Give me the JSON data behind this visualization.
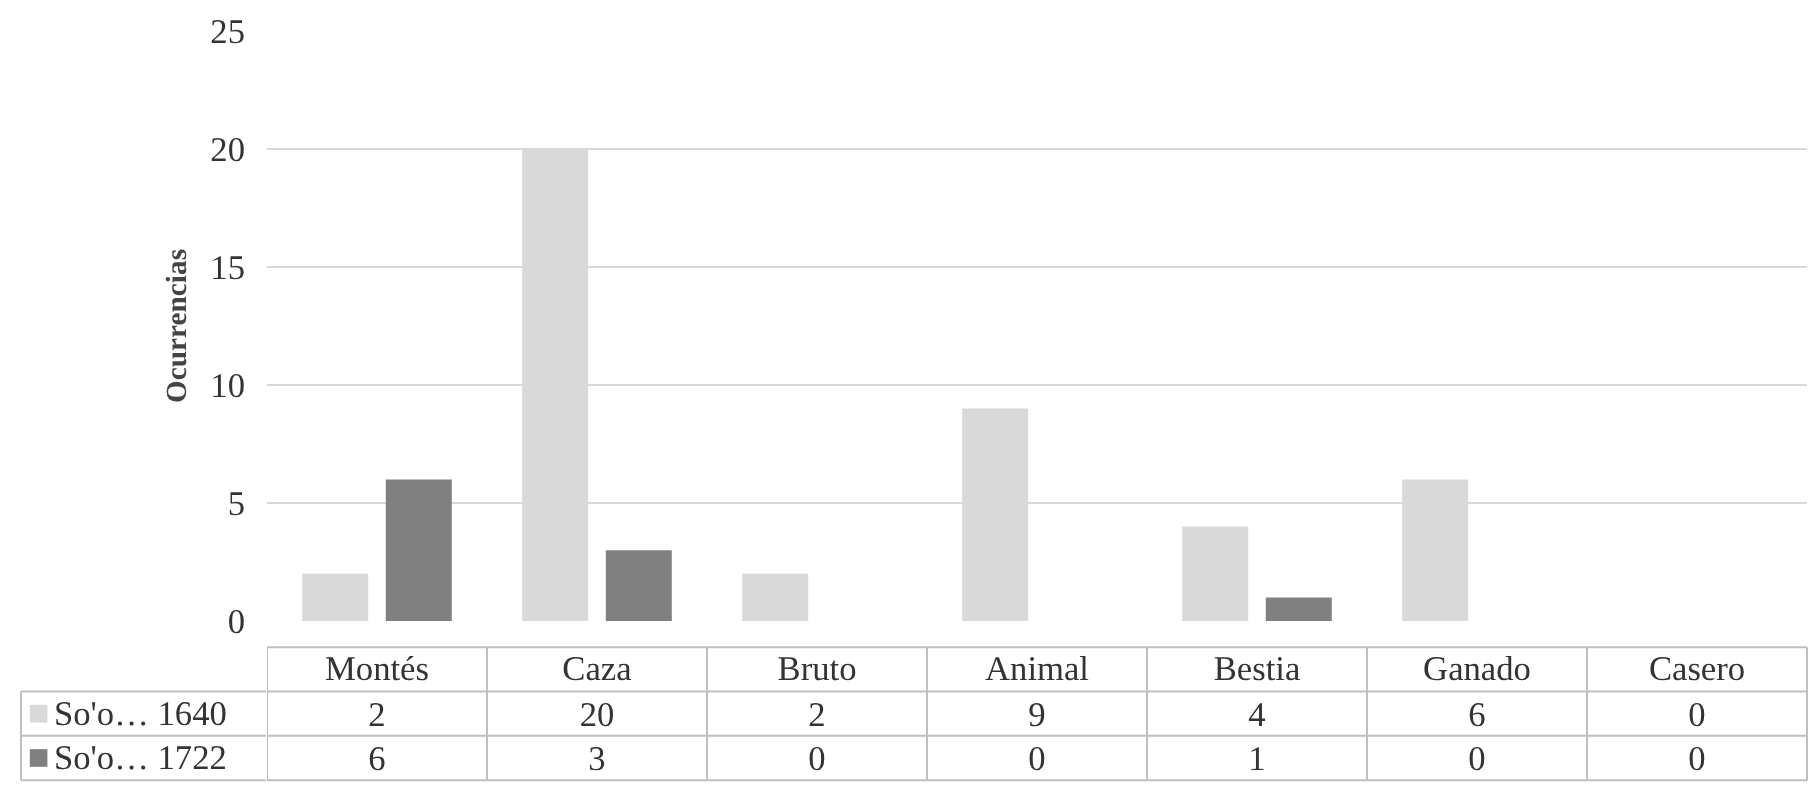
{
  "chart_data": {
    "type": "bar",
    "ylabel": "Ocurrencias",
    "categories": [
      "Montés",
      "Caza",
      "Bruto",
      "Animal",
      "Bestia",
      "Ganado",
      "Casero"
    ],
    "series": [
      {
        "name": "So'o… 1640",
        "color": "#d9d9d9",
        "values": [
          2,
          20,
          2,
          9,
          4,
          6,
          0
        ]
      },
      {
        "name": "So'o… 1722",
        "color": "#808080",
        "values": [
          6,
          3,
          0,
          0,
          1,
          0,
          0
        ]
      }
    ],
    "ylim": [
      0,
      25
    ],
    "yticks": [
      0,
      5,
      10,
      15,
      20,
      25
    ],
    "grid": "y",
    "legend": "bottom",
    "data_labels": true
  }
}
